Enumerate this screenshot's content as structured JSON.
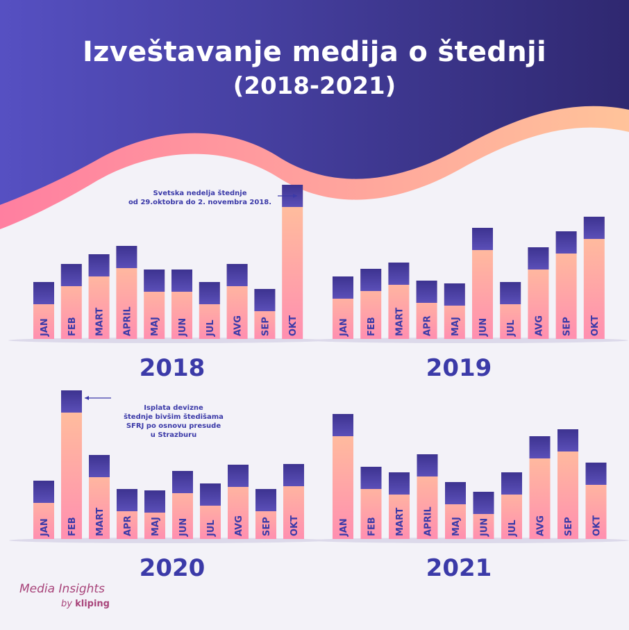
{
  "header": {
    "title": "Izveštavanje medija o štednji",
    "subtitle": "(2018-2021)"
  },
  "colors": {
    "header_bg_left": "#5650c2",
    "header_bg_right": "#2f2870",
    "bar_top": "#3d3390",
    "bar_top_light": "#5b4fb8",
    "bar_bottom": "#ff8fb0",
    "bar_mid": "#ffc49a",
    "label_color": "#3b3aa8",
    "wave": "#ff9aa0"
  },
  "annotations": {
    "a2018": {
      "line1": "Svetska nedelja štednje",
      "line2": "od 29.oktobra do 2. novembra 2018."
    },
    "a2020": {
      "line1": "Isplata devizne",
      "line2": "štednje bivšim štedišama",
      "line3": "SFRJ po osnovu presude",
      "line4": "u Strazburu"
    }
  },
  "brand": {
    "main": "Media Insights",
    "by": "by",
    "name": "kliping"
  },
  "chart_data": [
    {
      "type": "bar",
      "title": "2018",
      "categories": [
        "JAN",
        "FEB",
        "MART",
        "APRIL",
        "MAJ",
        "JUN",
        "JUL",
        "AVG",
        "SEP",
        "OKT"
      ],
      "values": [
        82,
        108,
        122,
        134,
        100,
        100,
        82,
        108,
        72,
        222
      ]
    },
    {
      "type": "bar",
      "title": "2019",
      "categories": [
        "JAN",
        "FEB",
        "MART",
        "APR",
        "MAJ",
        "JUN",
        "JUL",
        "AVG",
        "SEP",
        "OKT"
      ],
      "values": [
        90,
        101,
        110,
        84,
        80,
        160,
        82,
        132,
        155,
        176
      ]
    },
    {
      "type": "bar",
      "title": "2020",
      "categories": [
        "JAN",
        "FEB",
        "MART",
        "APR",
        "MAJ",
        "JUN",
        "JUL",
        "AVG",
        "SEP",
        "OKT"
      ],
      "values": [
        84,
        214,
        121,
        72,
        70,
        98,
        80,
        107,
        72,
        108
      ]
    },
    {
      "type": "bar",
      "title": "2021",
      "categories": [
        "JAN",
        "FEB",
        "MART",
        "APRIL",
        "MAJ",
        "JUN",
        "JUL",
        "AVG",
        "SEP",
        "OKT"
      ],
      "values": [
        180,
        104,
        96,
        122,
        82,
        68,
        96,
        148,
        158,
        110
      ]
    }
  ]
}
